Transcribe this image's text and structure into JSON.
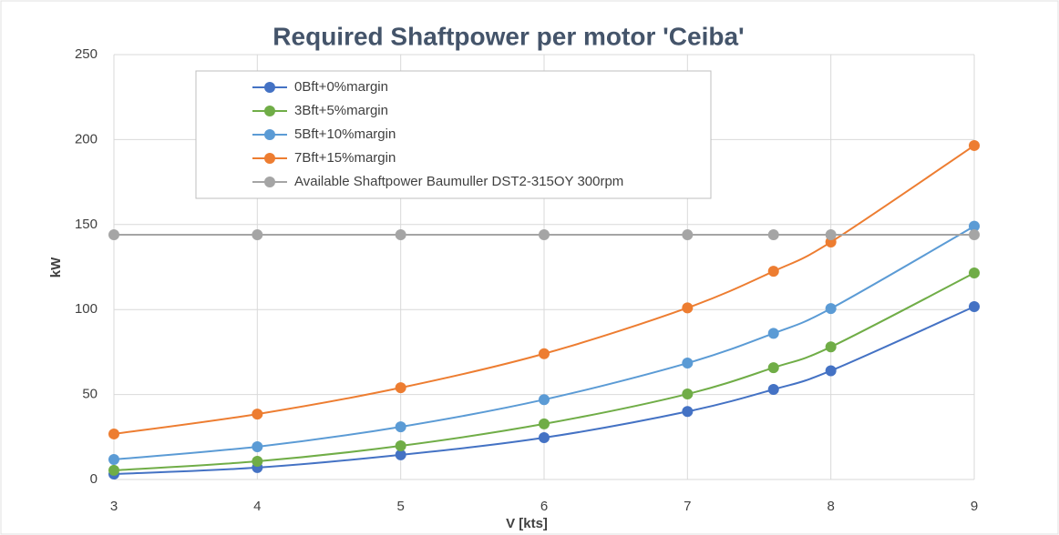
{
  "chart_data": {
    "type": "line",
    "title": "Required Shaftpower per motor 'Ceiba'",
    "xlabel": "V [kts]",
    "ylabel": "kW",
    "x": [
      3,
      4,
      5,
      6,
      7,
      7.6,
      8,
      9
    ],
    "series": [
      {
        "name": "0Bft+0%margin",
        "color": "#4472c4",
        "values": [
          3.2,
          7,
          14.5,
          24.6,
          40,
          53,
          64,
          101.7
        ]
      },
      {
        "name": "3Bft+5%margin",
        "color": "#70ad47",
        "values": [
          5.4,
          10.7,
          19.8,
          32.7,
          50.3,
          65.8,
          78,
          121.5
        ]
      },
      {
        "name": "5Bft+10%margin",
        "color": "#5b9bd5",
        "values": [
          11.8,
          19.3,
          31,
          47,
          68.5,
          86,
          100.6,
          149
        ]
      },
      {
        "name": "7Bft+15%margin",
        "color": "#ed7d31",
        "values": [
          26.8,
          38.5,
          54,
          74,
          101,
          122.5,
          139.7,
          196.5
        ]
      },
      {
        "name": "Available Shaftpower Baumuller DST2-315OY 300rpm",
        "color": "#a5a5a5",
        "values": [
          144,
          144,
          144,
          144,
          144,
          144,
          144,
          144
        ]
      }
    ],
    "xlim": [
      3,
      9
    ],
    "xticks": [
      3,
      4,
      5,
      6,
      7,
      8,
      9
    ],
    "ylim": [
      0,
      250
    ],
    "yticks": [
      0,
      50,
      100,
      150,
      200,
      250
    ],
    "grid": true,
    "legend": "upper left"
  }
}
